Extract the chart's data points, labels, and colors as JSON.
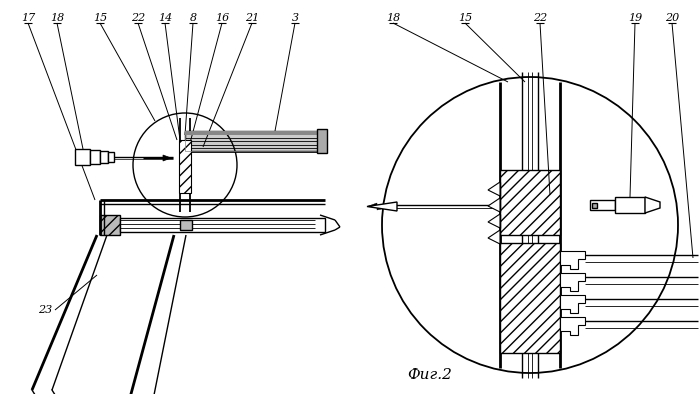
{
  "fig_label": "Фиг.2",
  "bg_color": "#ffffff",
  "lc": "#000000",
  "lw": 1.0,
  "tlw": 2.0
}
